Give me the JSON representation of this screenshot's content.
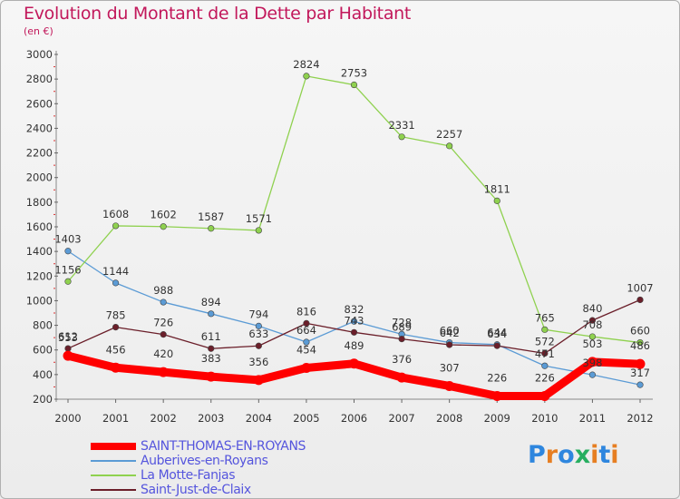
{
  "title": "Evolution du Montant de la Dette par Habitant",
  "subtitle": "(en €)",
  "logo": {
    "text": "Proxiti"
  },
  "chart_data": {
    "type": "line",
    "title": "Evolution du Montant de la Dette par Habitant",
    "subtitle": "(en €)",
    "x": [
      "2000",
      "2001",
      "2002",
      "2003",
      "2004",
      "2005",
      "2006",
      "2007",
      "2008",
      "2009",
      "2010",
      "2011",
      "2012"
    ],
    "ylim": [
      200,
      3000
    ],
    "yticks": [
      200,
      400,
      600,
      800,
      1000,
      1200,
      1400,
      1600,
      1800,
      2000,
      2200,
      2400,
      2600,
      2800,
      3000
    ],
    "grid": false,
    "legend_position": "bottom-left",
    "series": [
      {
        "name": "SAINT-THOMAS-EN-ROYANS",
        "color": "#ff0000",
        "values": [
          553,
          456,
          420,
          383,
          356,
          454,
          489,
          376,
          307,
          226,
          226,
          503,
          486
        ]
      },
      {
        "name": "Auberives-en-Royans",
        "color": "#5b9bd5",
        "values": [
          1403,
          1144,
          988,
          894,
          794,
          664,
          832,
          728,
          660,
          644,
          471,
          398,
          317
        ]
      },
      {
        "name": "La Motte-Fanjas",
        "color": "#8fd14f",
        "values": [
          1156,
          1608,
          1602,
          1587,
          1571,
          2824,
          2753,
          2331,
          2257,
          1811,
          765,
          708,
          660
        ]
      },
      {
        "name": "Saint-Just-de-Claix",
        "color": "#6b1f2a",
        "values": [
          612,
          785,
          726,
          611,
          633,
          816,
          743,
          689,
          642,
          634,
          572,
          840,
          1007
        ]
      }
    ]
  }
}
